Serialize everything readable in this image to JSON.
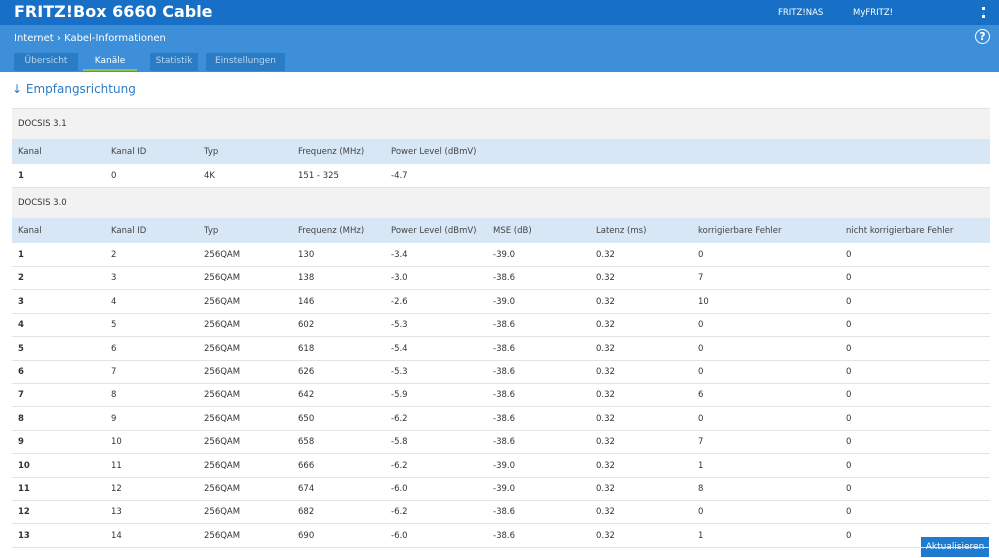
{
  "header": {
    "title": "FRITZ!Box 6660 Cable",
    "links": [
      "FRITZ!NAS",
      "MyFRITZ!"
    ]
  },
  "breadcrumb": [
    "Internet",
    "Kabel-Informationen"
  ],
  "tabs": [
    "Übersicht",
    "Kanäle",
    "Statistik",
    "Einstellungen"
  ],
  "section_title": "↓ Empfangsrichtung",
  "docsis31": {
    "title": "DOCSIS 3.1",
    "columns": [
      "Kanal",
      "Kanal ID",
      "Typ",
      "Frequenz (MHz)",
      "Power Level (dBmV)"
    ],
    "rows": [
      [
        "1",
        "0",
        "4K",
        "151 - 325",
        "-4.7"
      ]
    ]
  },
  "docsis30": {
    "title": "DOCSIS 3.0",
    "columns": [
      "Kanal",
      "Kanal ID",
      "Typ",
      "Frequenz (MHz)",
      "Power Level (dBmV)",
      "MSE (dB)",
      "Latenz (ms)",
      "korrigierbare Fehler",
      "nicht korrigierbare Fehler"
    ],
    "rows": [
      [
        "1",
        "2",
        "256QAM",
        "130",
        "-3.4",
        "-39.0",
        "0.32",
        "0",
        "0"
      ],
      [
        "2",
        "3",
        "256QAM",
        "138",
        "-3.0",
        "-38.6",
        "0.32",
        "7",
        "0"
      ],
      [
        "3",
        "4",
        "256QAM",
        "146",
        "-2.6",
        "-39.0",
        "0.32",
        "10",
        "0"
      ],
      [
        "4",
        "5",
        "256QAM",
        "602",
        "-5.3",
        "-38.6",
        "0.32",
        "0",
        "0"
      ],
      [
        "5",
        "6",
        "256QAM",
        "618",
        "-5.4",
        "-38.6",
        "0.32",
        "0",
        "0"
      ],
      [
        "6",
        "7",
        "256QAM",
        "626",
        "-5.3",
        "-38.6",
        "0.32",
        "0",
        "0"
      ],
      [
        "7",
        "8",
        "256QAM",
        "642",
        "-5.9",
        "-38.6",
        "0.32",
        "6",
        "0"
      ],
      [
        "8",
        "9",
        "256QAM",
        "650",
        "-6.2",
        "-38.6",
        "0.32",
        "0",
        "0"
      ],
      [
        "9",
        "10",
        "256QAM",
        "658",
        "-5.8",
        "-38.6",
        "0.32",
        "7",
        "0"
      ],
      [
        "10",
        "11",
        "256QAM",
        "666",
        "-6.2",
        "-39.0",
        "0.32",
        "1",
        "0"
      ],
      [
        "11",
        "12",
        "256QAM",
        "674",
        "-6.0",
        "-39.0",
        "0.32",
        "8",
        "0"
      ],
      [
        "12",
        "13",
        "256QAM",
        "682",
        "-6.2",
        "-38.6",
        "0.32",
        "0",
        "0"
      ],
      [
        "13",
        "14",
        "256QAM",
        "690",
        "-6.0",
        "-38.6",
        "0.32",
        "1",
        "0"
      ]
    ]
  },
  "button": "Aktualisieren"
}
